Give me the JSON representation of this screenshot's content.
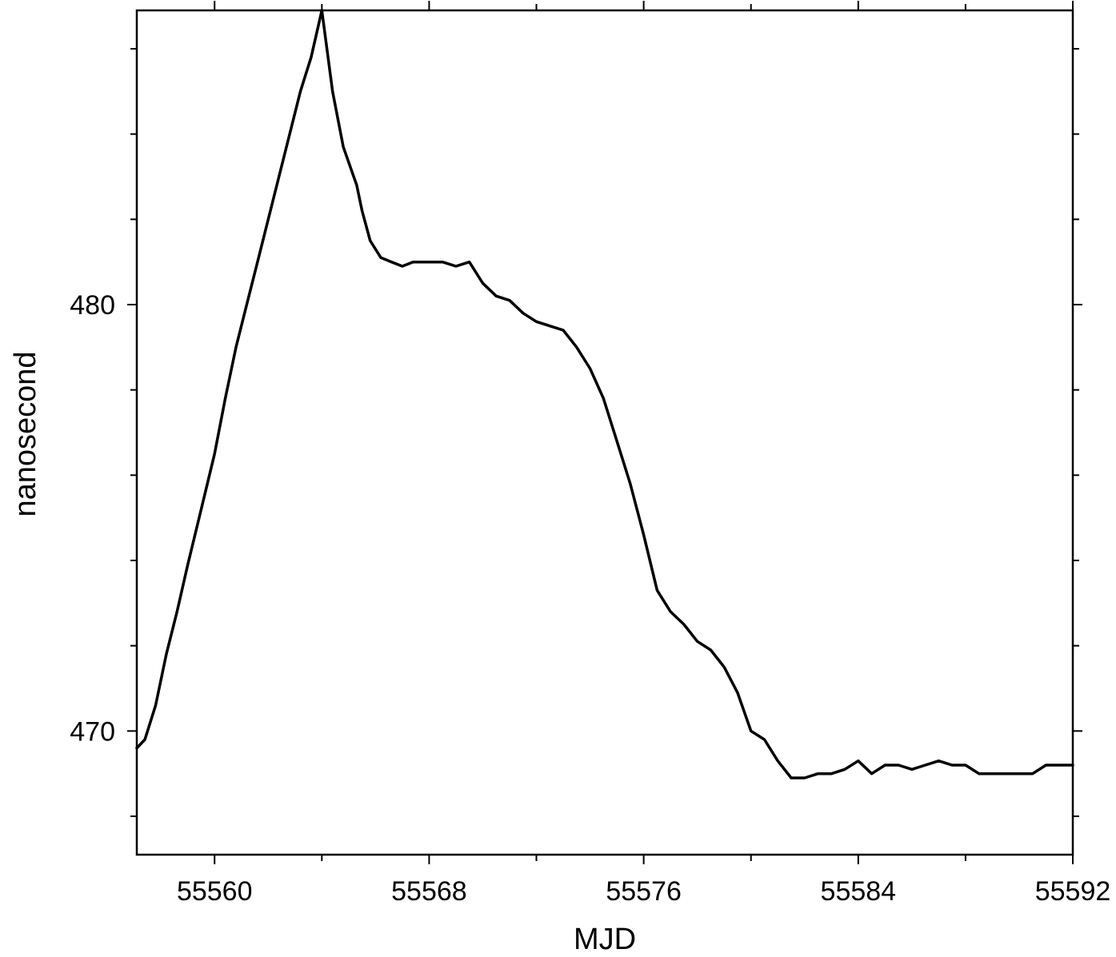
{
  "chart_data": {
    "type": "line",
    "title": "",
    "xlabel": "MJD",
    "ylabel": "nanosecond",
    "xlim": [
      55557.1,
      55592
    ],
    "ylim": [
      467.1,
      486.9
    ],
    "x_ticks": [
      55560,
      55568,
      55576,
      55584,
      55592
    ],
    "y_ticks": [
      470,
      480
    ],
    "grid": false,
    "line_color": "#000000",
    "series": [
      {
        "x": [
          55557.1,
          55557.4,
          55557.8,
          55558.2,
          55558.6,
          55559.0,
          55559.5,
          55560.0,
          55560.4,
          55560.8,
          55561.2,
          55561.6,
          55562.0,
          55562.4,
          55562.8,
          55563.2,
          55563.6,
          55564.0,
          55564.4,
          55564.8,
          55565.3,
          55565.5,
          55565.8,
          55566.2,
          55566.6,
          55567.0,
          55567.4,
          55567.8,
          55568.1,
          55568.5,
          55569.0,
          55569.5,
          55570.0,
          55570.5,
          55571.0,
          55571.5,
          55572.0,
          55572.5,
          55573.0,
          55573.5,
          55574.0,
          55574.5,
          55575.0,
          55575.5,
          55576.0,
          55576.5,
          55577.0,
          55577.5,
          55578.0,
          55578.5,
          55579.0,
          55579.5,
          55580.0,
          55580.5,
          55581.0,
          55581.5,
          55582.0,
          55582.5,
          55583.0,
          55583.5,
          55584.0,
          55584.5,
          55585.0,
          55585.5,
          55586.0,
          55586.5,
          55587.0,
          55587.5,
          55588.0,
          55588.5,
          55589.0,
          55589.5,
          55590.0,
          55590.5,
          55591.0,
          55591.5,
          55592.0
        ],
        "y": [
          469.6,
          469.8,
          470.6,
          471.8,
          472.8,
          473.9,
          475.2,
          476.5,
          477.8,
          479.0,
          480.0,
          481.0,
          482.0,
          483.0,
          484.0,
          485.0,
          485.8,
          486.9,
          485.0,
          483.7,
          482.8,
          482.2,
          481.5,
          481.1,
          481.0,
          480.9,
          481.0,
          481.0,
          481.0,
          481.0,
          480.9,
          481.0,
          480.5,
          480.2,
          480.1,
          479.8,
          479.6,
          479.5,
          479.4,
          479.0,
          478.5,
          477.8,
          476.8,
          475.8,
          474.6,
          473.3,
          472.8,
          472.5,
          472.1,
          471.9,
          471.5,
          470.9,
          470.0,
          469.8,
          469.3,
          468.9,
          468.9,
          469.0,
          469.0,
          469.1,
          469.3,
          469.0,
          469.2,
          469.2,
          469.1,
          469.2,
          469.3,
          469.2,
          469.2,
          469.0,
          469.0,
          469.0,
          469.0,
          469.0,
          469.2,
          469.2,
          469.2
        ]
      }
    ]
  }
}
